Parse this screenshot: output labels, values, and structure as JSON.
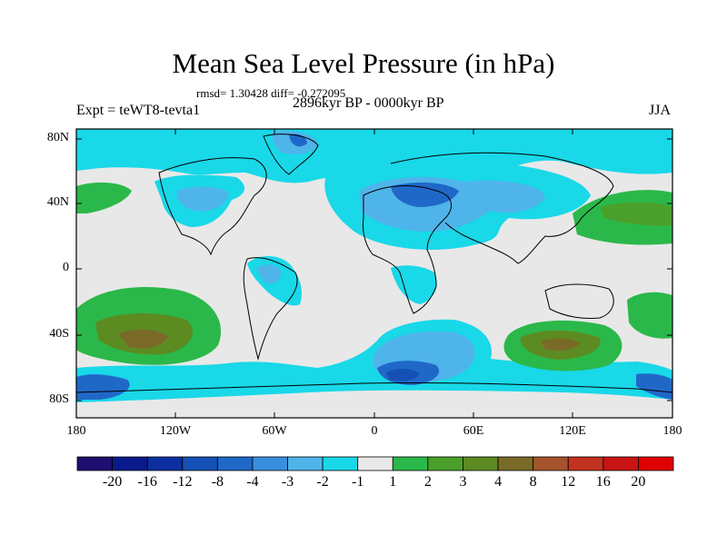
{
  "title": "Mean Sea Level Pressure (in hPa)",
  "stats": "rmsd= 1.30428 diff= -0.272095",
  "experiment": "Expt = teWT8-tevta1",
  "period": "2896kyr BP - 0000kyr BP",
  "season": "JJA",
  "axes": {
    "y_ticks": [
      "80N",
      "40N",
      "0",
      "40S",
      "80S"
    ],
    "x_ticks": [
      "180",
      "120W",
      "60W",
      "0",
      "60E",
      "120E",
      "180"
    ]
  },
  "colorbar": {
    "labels": [
      "-20",
      "-16",
      "-12",
      "-8",
      "-4",
      "-3",
      "-2",
      "-1",
      "1",
      "2",
      "3",
      "4",
      "8",
      "12",
      "16",
      "20"
    ],
    "colors": [
      "#1d0f6f",
      "#0a1a8c",
      "#0b2fa0",
      "#1450b5",
      "#2068c8",
      "#3a8ee0",
      "#4fb4ea",
      "#19d8e8",
      "#e8e8e8",
      "#2bb84a",
      "#4aa02a",
      "#5c8b22",
      "#7a6a28",
      "#a5532a",
      "#c2321e",
      "#c81414",
      "#e00000"
    ]
  },
  "palette": {
    "neutral": "#e8e8e8",
    "cyan": "#19d8e8",
    "light_blue": "#4fb4ea",
    "mid_blue": "#2068c8",
    "dark_blue": "#1450b5",
    "green": "#2bb84a",
    "dark_green": "#5c8b22",
    "brown": "#7a6a28"
  }
}
